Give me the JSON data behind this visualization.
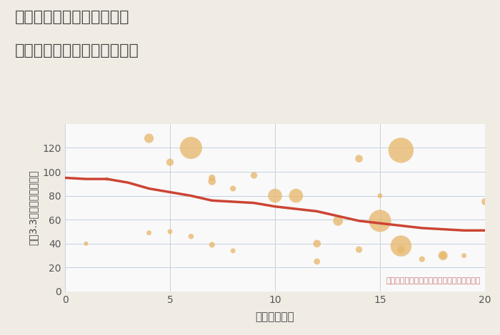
{
  "title_line1": "奈良県奈良市北半田西町の",
  "title_line2": "駅距離別中古マンション価格",
  "xlabel": "駅距離（分）",
  "ylabel": "坪（3.3㎡）単価（万円）",
  "annotation": "円の大きさは、取引のあった物件面積を示す",
  "bg_color": "#f0ece4",
  "plot_bg_color": "#f9f9f9",
  "scatter_color": "#e8b86d",
  "scatter_alpha": 0.78,
  "line_color": "#cc4433",
  "line_width": 2.5,
  "grid_color": "#c5cfe0",
  "xlim": [
    0,
    20
  ],
  "ylim": [
    0,
    140
  ],
  "xticks": [
    0,
    5,
    10,
    15,
    20
  ],
  "yticks": [
    0,
    20,
    40,
    60,
    80,
    100,
    120
  ],
  "scatter_x": [
    1,
    2,
    4,
    4,
    5,
    5,
    6,
    6,
    7,
    7,
    7,
    8,
    8,
    9,
    10,
    11,
    12,
    12,
    13,
    14,
    14,
    15,
    15,
    16,
    16,
    16,
    17,
    18,
    18,
    19,
    20
  ],
  "scatter_y": [
    40,
    94,
    49,
    128,
    108,
    50,
    120,
    46,
    92,
    95,
    39,
    86,
    34,
    97,
    80,
    80,
    25,
    40,
    59,
    111,
    35,
    80,
    59,
    118,
    38,
    35,
    27,
    30,
    30,
    30,
    75
  ],
  "scatter_s": [
    20,
    15,
    25,
    90,
    55,
    25,
    500,
    30,
    60,
    45,
    35,
    35,
    25,
    45,
    200,
    200,
    40,
    60,
    100,
    60,
    45,
    25,
    500,
    650,
    450,
    60,
    35,
    45,
    90,
    25,
    50
  ],
  "trend_x": [
    0,
    1,
    2,
    3,
    4,
    5,
    6,
    7,
    8,
    9,
    10,
    11,
    12,
    13,
    14,
    15,
    16,
    17,
    18,
    19,
    20
  ],
  "trend_y": [
    95,
    94,
    94,
    91,
    86,
    83,
    80,
    76,
    75,
    74,
    71,
    69,
    67,
    63,
    59,
    57,
    55,
    53,
    52,
    51,
    51
  ]
}
